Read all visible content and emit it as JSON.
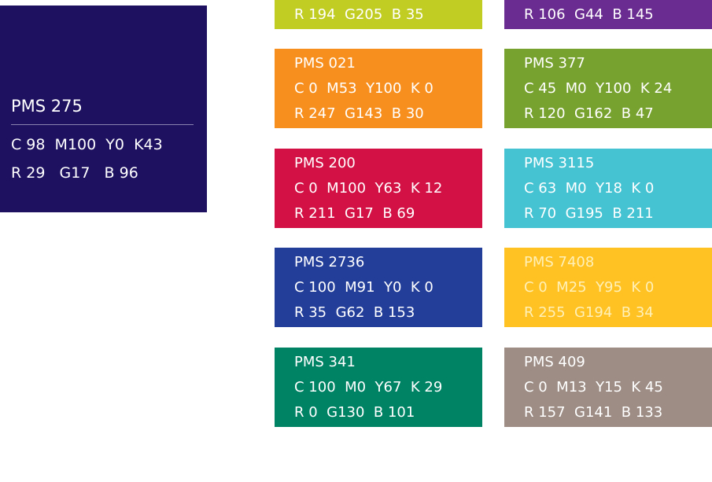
{
  "main": {
    "name": "PMS 275",
    "cmyk": "C 98  M100  Y0  K43",
    "rgb": "R 29   G17   B 96",
    "color": "#1d1160"
  },
  "swatches": [
    {
      "rgb": "R 194  G205  B 35",
      "color": "#c2cd23"
    },
    {
      "rgb": "R 106  G44  B 145",
      "color": "#6a2c91"
    },
    {
      "name": "PMS 021",
      "cmyk": "C 0  M53  Y100  K 0",
      "rgb": "R 247  G143  B 30",
      "color": "#f78f1e"
    },
    {
      "name": "PMS 377",
      "cmyk": "C 45  M0  Y100  K 24",
      "rgb": "R 120  G162  B 47",
      "color": "#78a22f"
    },
    {
      "name": "PMS 200",
      "cmyk": "C 0  M100  Y63  K 12",
      "rgb": "R 211  G17  B 69",
      "color": "#d31145"
    },
    {
      "name": "PMS 3115",
      "cmyk": "C 63  M0  Y18  K 0",
      "rgb": "R 70  G195  B 211",
      "color": "#46c3d3"
    },
    {
      "name": "PMS 2736",
      "cmyk": "C 100  M91  Y0  K 0",
      "rgb": "R 35  G62  B 153",
      "color": "#233e99"
    },
    {
      "name": "PMS 7408",
      "cmyk": "C 0  M25  Y95  K 0",
      "rgb": "R 255  G194  B 34",
      "color": "#ffc222",
      "text_color": "#fff0b8"
    },
    {
      "name": "PMS 341",
      "cmyk": "C 100  M0  Y67  K 29",
      "rgb": "R 0  G130  B 101",
      "color": "#008265"
    },
    {
      "name": "PMS 409",
      "cmyk": "C 0  M13  Y15  K 45",
      "rgb": "R 157  G141  B 133",
      "color": "#9d8d85"
    }
  ]
}
